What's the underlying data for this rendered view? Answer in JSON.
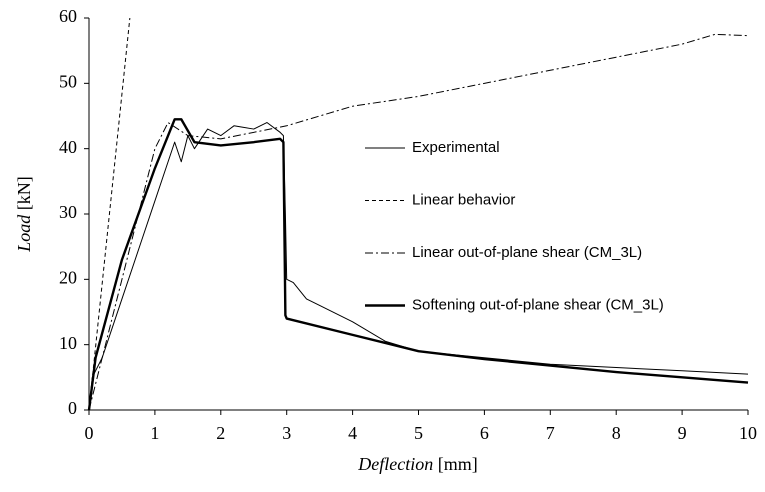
{
  "chart_data": {
    "type": "line",
    "xlabel_name": "Deflection",
    "xlabel_unit": "[mm]",
    "ylabel_name": "Load",
    "ylabel_unit": "[kN]",
    "xlim": [
      0,
      10
    ],
    "xticks": [
      0,
      1,
      2,
      3,
      4,
      5,
      6,
      7,
      8,
      9,
      10
    ],
    "ylim": [
      0,
      60
    ],
    "yticks": [
      0,
      10,
      20,
      30,
      40,
      50,
      60
    ],
    "grid": false,
    "legend": "right",
    "series": [
      {
        "name": "Experimental",
        "color": "#000000",
        "line_style": "solid",
        "weight": "thin",
        "x": [
          0,
          0.05,
          0.2,
          0.5,
          0.8,
          1.0,
          1.2,
          1.3,
          1.4,
          1.5,
          1.6,
          1.8,
          2.0,
          2.2,
          2.5,
          2.7,
          2.9,
          2.95,
          2.98,
          3.0,
          3.1,
          3.3,
          3.5,
          4,
          4.5,
          5,
          6,
          7,
          8,
          9,
          10
        ],
        "values": [
          0,
          5,
          8,
          17,
          26,
          32,
          38,
          41,
          38,
          42,
          40,
          43,
          42,
          43.5,
          43,
          44,
          42.5,
          42,
          30,
          20,
          19.5,
          17,
          16,
          13.5,
          10.5,
          9,
          8,
          7,
          6.5,
          6,
          5.5
        ]
      },
      {
        "name": "Linear behavior",
        "color": "#000000",
        "line_style": "dashed",
        "weight": "thin",
        "x": [
          0,
          0.62
        ],
        "values": [
          0,
          60
        ]
      },
      {
        "name": "Linear out-of-plane shear (CM_3L)",
        "color": "#000000",
        "line_style": "dash-dot",
        "weight": "thin",
        "x": [
          0,
          0.5,
          1,
          1.2,
          1.5,
          2,
          3,
          4,
          5,
          6,
          7,
          8,
          9,
          9.5,
          10
        ],
        "values": [
          0,
          20,
          40,
          44,
          42,
          41.5,
          43.5,
          46.5,
          48,
          50,
          52,
          54,
          56,
          57.5,
          57.3
        ]
      },
      {
        "name": "Softening out-of-plane shear (CM_3L)",
        "color": "#000000",
        "line_style": "solid",
        "weight": "thick",
        "x": [
          0,
          0.1,
          0.5,
          1,
          1.3,
          1.4,
          1.6,
          2,
          2.5,
          2.9,
          2.95,
          2.98,
          3,
          4,
          5,
          6,
          7,
          8,
          9,
          10
        ],
        "values": [
          0,
          8,
          23,
          37,
          44.5,
          44.5,
          41,
          40.5,
          41,
          41.5,
          41,
          14.5,
          14,
          11.5,
          9,
          7.8,
          6.8,
          5.8,
          5,
          4.2
        ]
      }
    ]
  }
}
